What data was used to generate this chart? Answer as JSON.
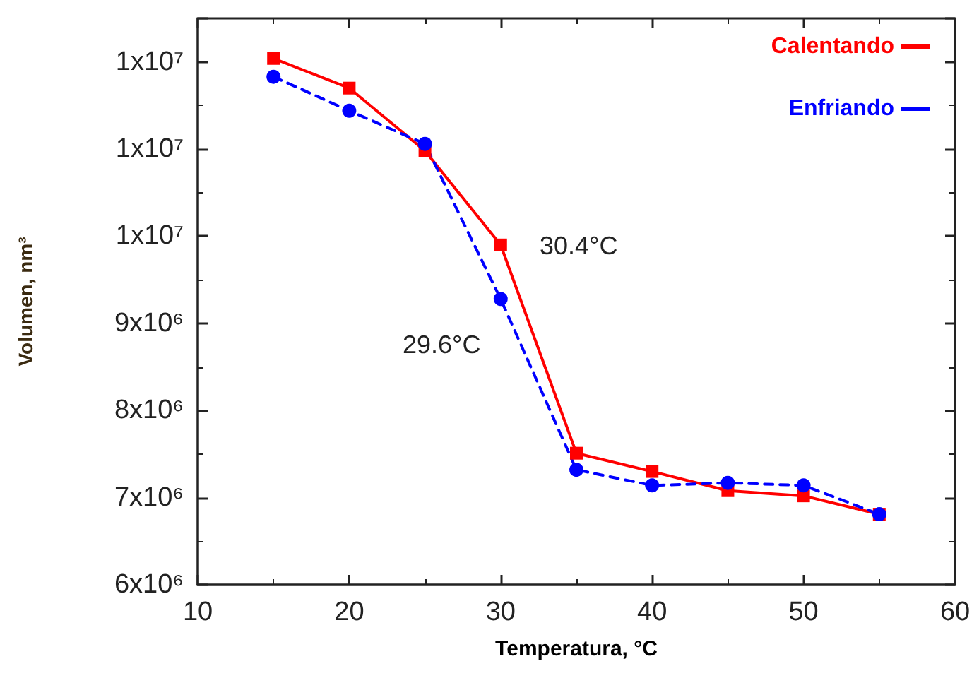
{
  "chart_data": {
    "type": "line",
    "xlabel": "Temperatura, °C",
    "ylabel": "Volumen, nm³",
    "x": [
      15,
      20,
      25,
      30,
      35,
      40,
      45,
      50,
      55
    ],
    "series": [
      {
        "name": "Calentando",
        "color": "#ff0000",
        "marker": "square",
        "line_style": "solid",
        "values": [
          12040000,
          11700000,
          10980000,
          9900000,
          7510000,
          7300000,
          7080000,
          7020000,
          6810000
        ]
      },
      {
        "name": "Enfriando",
        "color": "#0000ff",
        "marker": "circle",
        "line_style": "dashed",
        "values": [
          11830000,
          11440000,
          11060000,
          9280000,
          7320000,
          7140000,
          7170000,
          7140000,
          6810000
        ]
      }
    ],
    "annotations": [
      "30.4°C",
      "29.6°C"
    ],
    "xlim": [
      10,
      60
    ],
    "xticks": [
      10,
      20,
      30,
      40,
      50,
      60
    ],
    "ylim": [
      6000000,
      12500000
    ],
    "yticks": [
      {
        "value": 6000000,
        "label": "6x10⁶"
      },
      {
        "value": 7000000,
        "label": "7x10⁶"
      },
      {
        "value": 8000000,
        "label": "8x10⁶"
      },
      {
        "value": 9000000,
        "label": "9x10⁶"
      },
      {
        "value": 10000000,
        "label": "1x10⁷"
      },
      {
        "value": 11000000,
        "label": "1x10⁷"
      },
      {
        "value": 12000000,
        "label": "1x10⁷"
      }
    ],
    "grid": false,
    "legend": "top right"
  }
}
